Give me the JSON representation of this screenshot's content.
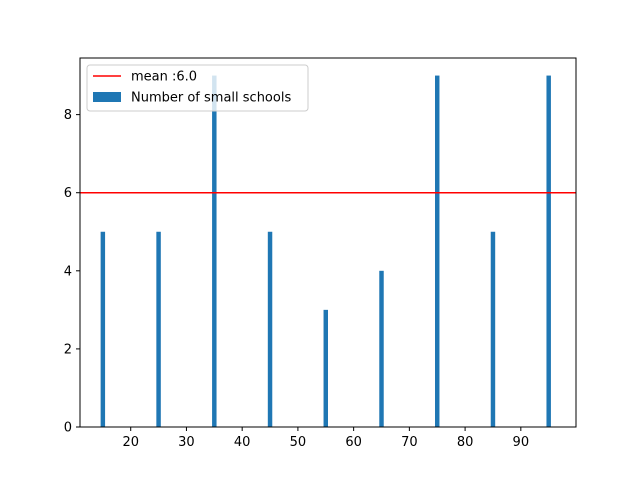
{
  "chart_data": {
    "type": "bar",
    "x": [
      15,
      25,
      35,
      45,
      55,
      65,
      75,
      85,
      95
    ],
    "values": [
      5,
      5,
      9,
      5,
      3,
      4,
      9,
      5,
      9
    ],
    "bar_width": 0.8,
    "xlim": [
      10.9,
      99.9
    ],
    "ylim": [
      0,
      9.45
    ],
    "xticks": [
      20,
      30,
      40,
      50,
      60,
      70,
      80,
      90
    ],
    "xtick_labels": [
      "20",
      "30",
      "40",
      "50",
      "60",
      "70",
      "80",
      "90"
    ],
    "yticks": [
      0,
      2,
      4,
      6,
      8
    ],
    "ytick_labels": [
      "0",
      "2",
      "4",
      "6",
      "8"
    ],
    "mean_line": {
      "value": 6.0,
      "label": "mean :6.0",
      "color": "#ff0000"
    },
    "series": [
      {
        "name": "Number of small schools",
        "color": "#1f77b4"
      }
    ],
    "legend_position": "top-left",
    "grid": false,
    "title": "",
    "xlabel": "",
    "ylabel": ""
  }
}
